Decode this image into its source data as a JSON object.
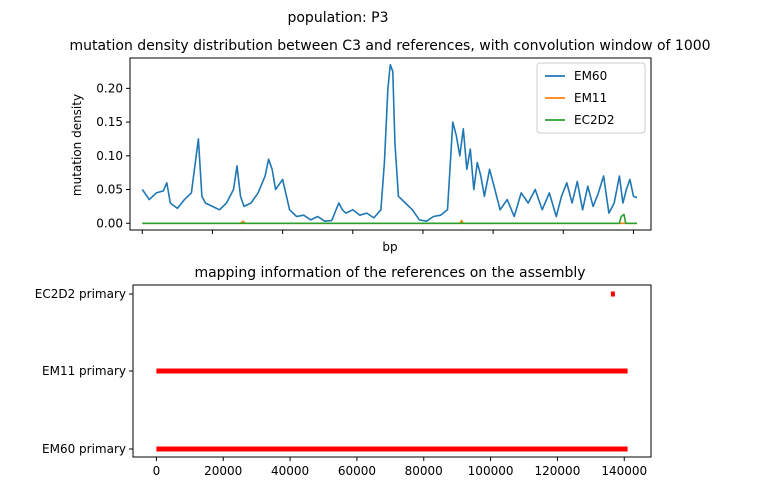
{
  "figure": {
    "suptitle": "population: P3"
  },
  "chart_data": [
    {
      "type": "line",
      "title": "mutation density distribution between C3 and references, with convolution window of 1000",
      "xlabel": "bp",
      "ylabel": "mutation density",
      "xlim": [
        -3500,
        145000
      ],
      "ylim": [
        -0.01,
        0.245
      ],
      "xticks_labels_visible": false,
      "yticks": [
        0.0,
        0.05,
        0.1,
        0.15,
        0.2
      ],
      "ytick_labels": [
        "0.00",
        "0.05",
        "0.10",
        "0.15",
        "0.20"
      ],
      "legend_position": "top-right",
      "series": [
        {
          "name": "EM60",
          "color": "#1f77b4",
          "x": [
            0,
            2000,
            4000,
            6000,
            7000,
            8000,
            10000,
            12000,
            14000,
            15000,
            16000,
            17000,
            18000,
            20000,
            22000,
            24000,
            26000,
            27000,
            28000,
            29000,
            31000,
            33000,
            35000,
            36000,
            37000,
            38000,
            40000,
            42000,
            44000,
            46000,
            48000,
            50000,
            52000,
            54000,
            56000,
            57000,
            58000,
            60000,
            62000,
            64000,
            66000,
            68000,
            69000,
            70000,
            70700,
            71400,
            72000,
            73000,
            75000,
            77000,
            79000,
            81000,
            83000,
            85000,
            87000,
            88500,
            89500,
            90500,
            91500,
            92500,
            93500,
            94500,
            95500,
            96500,
            97500,
            99000,
            100500,
            102000,
            104000,
            106000,
            108000,
            110000,
            112000,
            114000,
            116000,
            118000,
            119500,
            121000,
            122500,
            124000,
            125500,
            127000,
            128500,
            130000,
            131500,
            133000,
            134500,
            136000,
            137000,
            138000,
            139000,
            140000,
            141000
          ],
          "values": [
            0.05,
            0.035,
            0.045,
            0.048,
            0.06,
            0.03,
            0.022,
            0.035,
            0.045,
            0.085,
            0.125,
            0.04,
            0.03,
            0.025,
            0.02,
            0.03,
            0.05,
            0.085,
            0.04,
            0.025,
            0.03,
            0.045,
            0.07,
            0.095,
            0.08,
            0.05,
            0.065,
            0.02,
            0.01,
            0.012,
            0.005,
            0.01,
            0.003,
            0.004,
            0.03,
            0.02,
            0.015,
            0.02,
            0.012,
            0.015,
            0.008,
            0.02,
            0.09,
            0.2,
            0.235,
            0.225,
            0.12,
            0.04,
            0.03,
            0.02,
            0.005,
            0.003,
            0.01,
            0.012,
            0.02,
            0.15,
            0.13,
            0.1,
            0.14,
            0.08,
            0.11,
            0.05,
            0.09,
            0.07,
            0.04,
            0.08,
            0.05,
            0.02,
            0.035,
            0.01,
            0.045,
            0.03,
            0.05,
            0.02,
            0.045,
            0.01,
            0.04,
            0.06,
            0.03,
            0.062,
            0.02,
            0.055,
            0.025,
            0.045,
            0.07,
            0.015,
            0.03,
            0.07,
            0.03,
            0.05,
            0.065,
            0.04,
            0.038
          ]
        },
        {
          "name": "EM11",
          "color": "#ff7f0e",
          "x": [
            0,
            28000,
            28700,
            29400,
            60000,
            90500,
            91000,
            91500,
            120000,
            141000
          ],
          "values": [
            0.0,
            0.0,
            0.003,
            0.0,
            0.0,
            0.0,
            0.004,
            0.0,
            0.0,
            0.0
          ]
        },
        {
          "name": "EC2D2",
          "color": "#2ca02c",
          "x": [
            0,
            136000,
            136500,
            137300,
            137800,
            138300,
            141000
          ],
          "values": [
            0.0,
            0.0,
            0.01,
            0.013,
            0.0,
            0.0,
            0.0
          ]
        }
      ]
    },
    {
      "type": "scatter",
      "title": "mapping information of the references on the assembly",
      "xlim": [
        -7000,
        148000
      ],
      "xticks": [
        0,
        20000,
        40000,
        60000,
        80000,
        100000,
        120000,
        140000
      ],
      "categories": [
        "EM60 primary",
        "EM11 primary",
        "EC2D2 primary"
      ],
      "color": "#ff0000",
      "segments": [
        {
          "category": "EM60 primary",
          "start": 0,
          "end": 141000
        },
        {
          "category": "EM11 primary",
          "start": 0,
          "end": 141000
        },
        {
          "category": "EC2D2 primary",
          "start": 136000,
          "end": 137000
        }
      ]
    }
  ]
}
